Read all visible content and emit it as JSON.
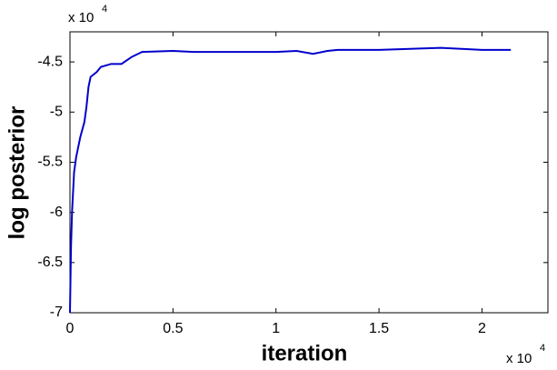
{
  "chart_data": {
    "type": "line",
    "x_label": "iteration",
    "y_label": "log posterior",
    "x_scale_text": "x 10",
    "x_scale_exponent": "4",
    "y_scale_text": "x 10",
    "y_scale_exponent": "4",
    "x": [
      0,
      0.005,
      0.01,
      0.02,
      0.03,
      0.05,
      0.07,
      0.08,
      0.09,
      0.1,
      0.13,
      0.15,
      0.2,
      0.25,
      0.3,
      0.35,
      0.5,
      0.6,
      1.0,
      1.1,
      1.18,
      1.25,
      1.3,
      1.5,
      1.8,
      1.9,
      2.0,
      2.14
    ],
    "series": [
      {
        "color": "#0000cc",
        "values": [
          -7,
          -6.35,
          -6.0,
          -5.6,
          -5.45,
          -5.25,
          -5.1,
          -4.95,
          -4.75,
          -4.65,
          -4.6,
          -4.55,
          -4.52,
          -4.52,
          -4.45,
          -4.4,
          -4.39,
          -4.4,
          -4.4,
          -4.39,
          -4.42,
          -4.39,
          -4.38,
          -4.38,
          -4.36,
          -4.37,
          -4.38,
          -4.38
        ]
      }
    ],
    "xlim": [
      0,
      2.32
    ],
    "xticks": [
      0,
      0.5,
      1,
      1.5,
      2
    ],
    "ylim": [
      -7,
      -4.2
    ],
    "yticks": [
      -7,
      -6.5,
      -6,
      -5.5,
      -5,
      -4.5
    ]
  }
}
